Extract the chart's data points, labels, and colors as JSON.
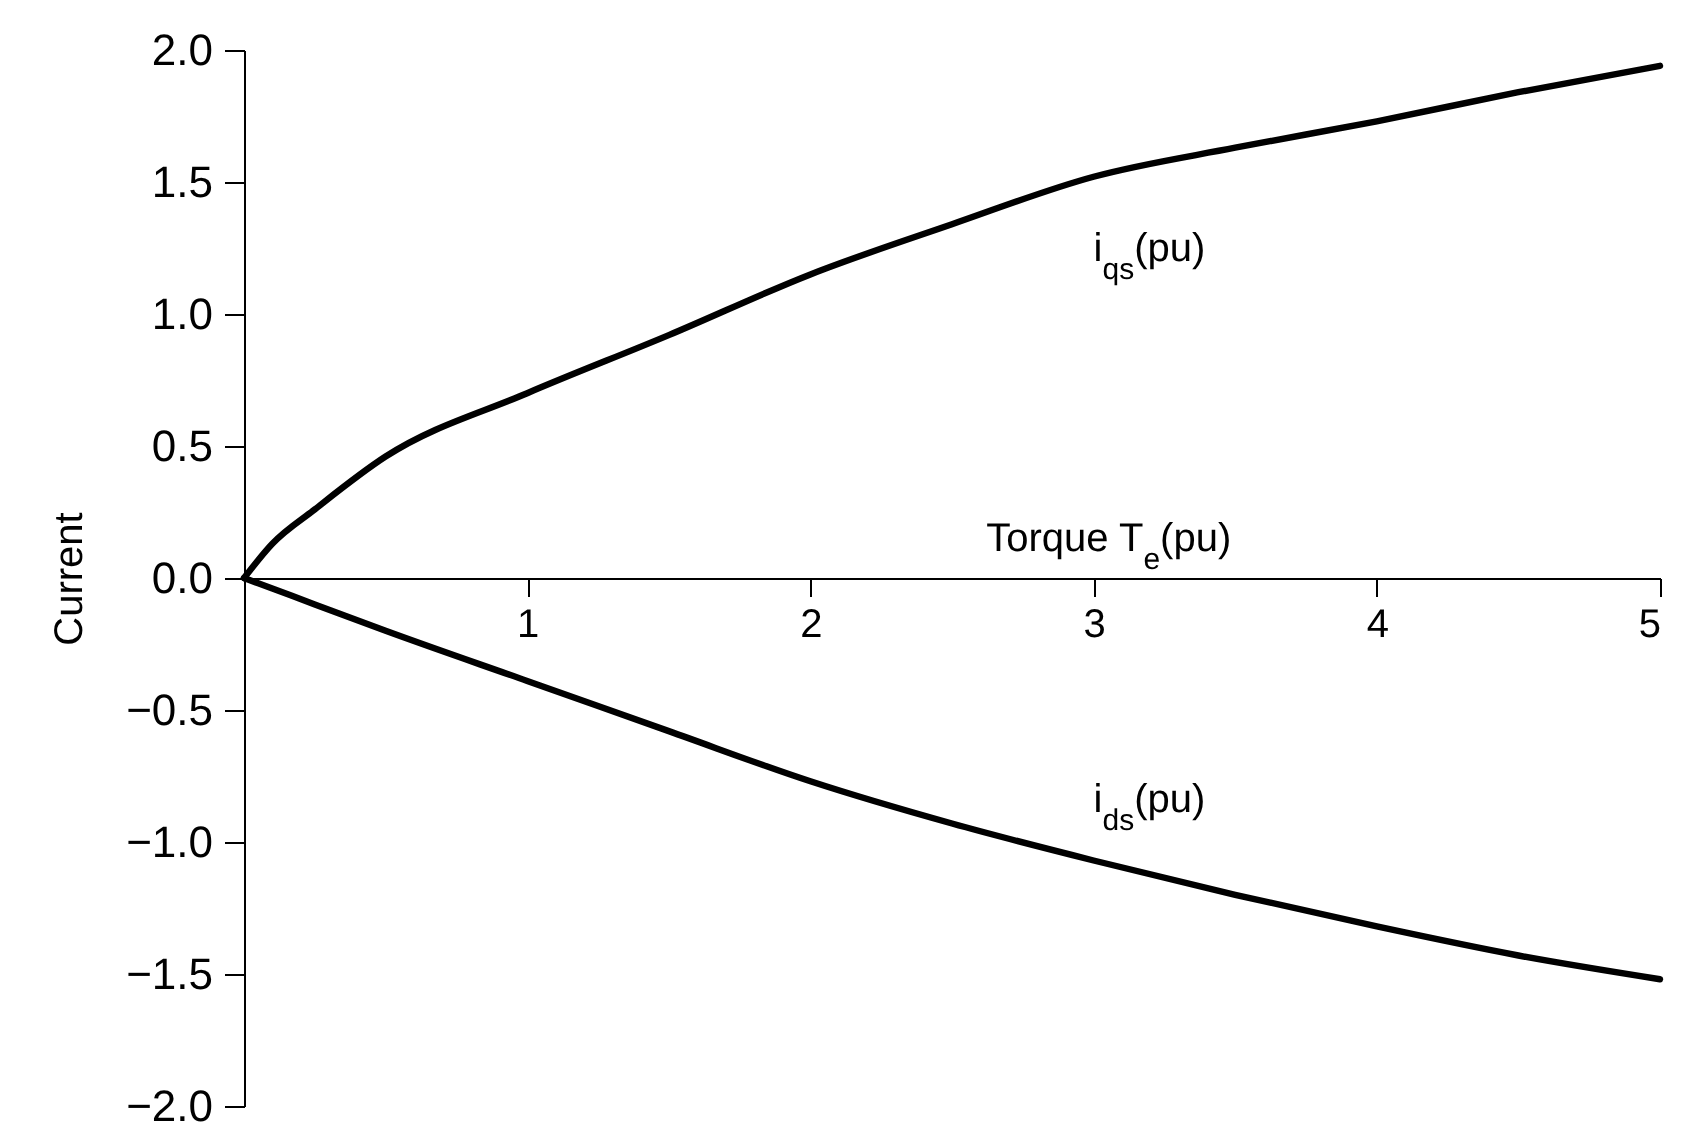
{
  "chart_data": {
    "type": "line",
    "xlabel": "Torque  T$_{e}$(pu)",
    "ylabel": "Current",
    "xlim": [
      0,
      5
    ],
    "ylim": [
      -2,
      2
    ],
    "xticks": [
      1,
      2,
      3,
      4,
      5
    ],
    "yticks": [
      {
        "value": -2,
        "label": "−2.0"
      },
      {
        "value": -1.5,
        "label": "−1.5"
      },
      {
        "value": -1,
        "label": "−1.0"
      },
      {
        "value": -0.5,
        "label": "−0.5"
      },
      {
        "value": 0,
        "label": "0.0"
      },
      {
        "value": 0.5,
        "label": "0.5"
      },
      {
        "value": 1,
        "label": "1.0"
      },
      {
        "value": 1.5,
        "label": "1.5"
      },
      {
        "value": 2,
        "label": "2.0"
      }
    ],
    "x": [
      0,
      0.1,
      0.25,
      0.5,
      1,
      1.5,
      2,
      2.5,
      3,
      3.5,
      4,
      4.5,
      5
    ],
    "series": [
      {
        "name": "i$_{qs}$(pu)",
        "color": "#000000",
        "values": [
          0,
          0.13,
          0.26,
          0.46,
          0.7,
          0.92,
          1.15,
          1.34,
          1.52,
          1.63,
          1.73,
          1.84,
          1.94
        ]
      },
      {
        "name": "i$_{ds}$(pu)",
        "color": "#000000",
        "values": [
          0,
          -0.04,
          -0.1,
          -0.2,
          -0.39,
          -0.58,
          -0.77,
          -0.93,
          -1.07,
          -1.2,
          -1.32,
          -1.43,
          -1.52
        ]
      }
    ],
    "line_style": "solid",
    "marker": "none"
  }
}
